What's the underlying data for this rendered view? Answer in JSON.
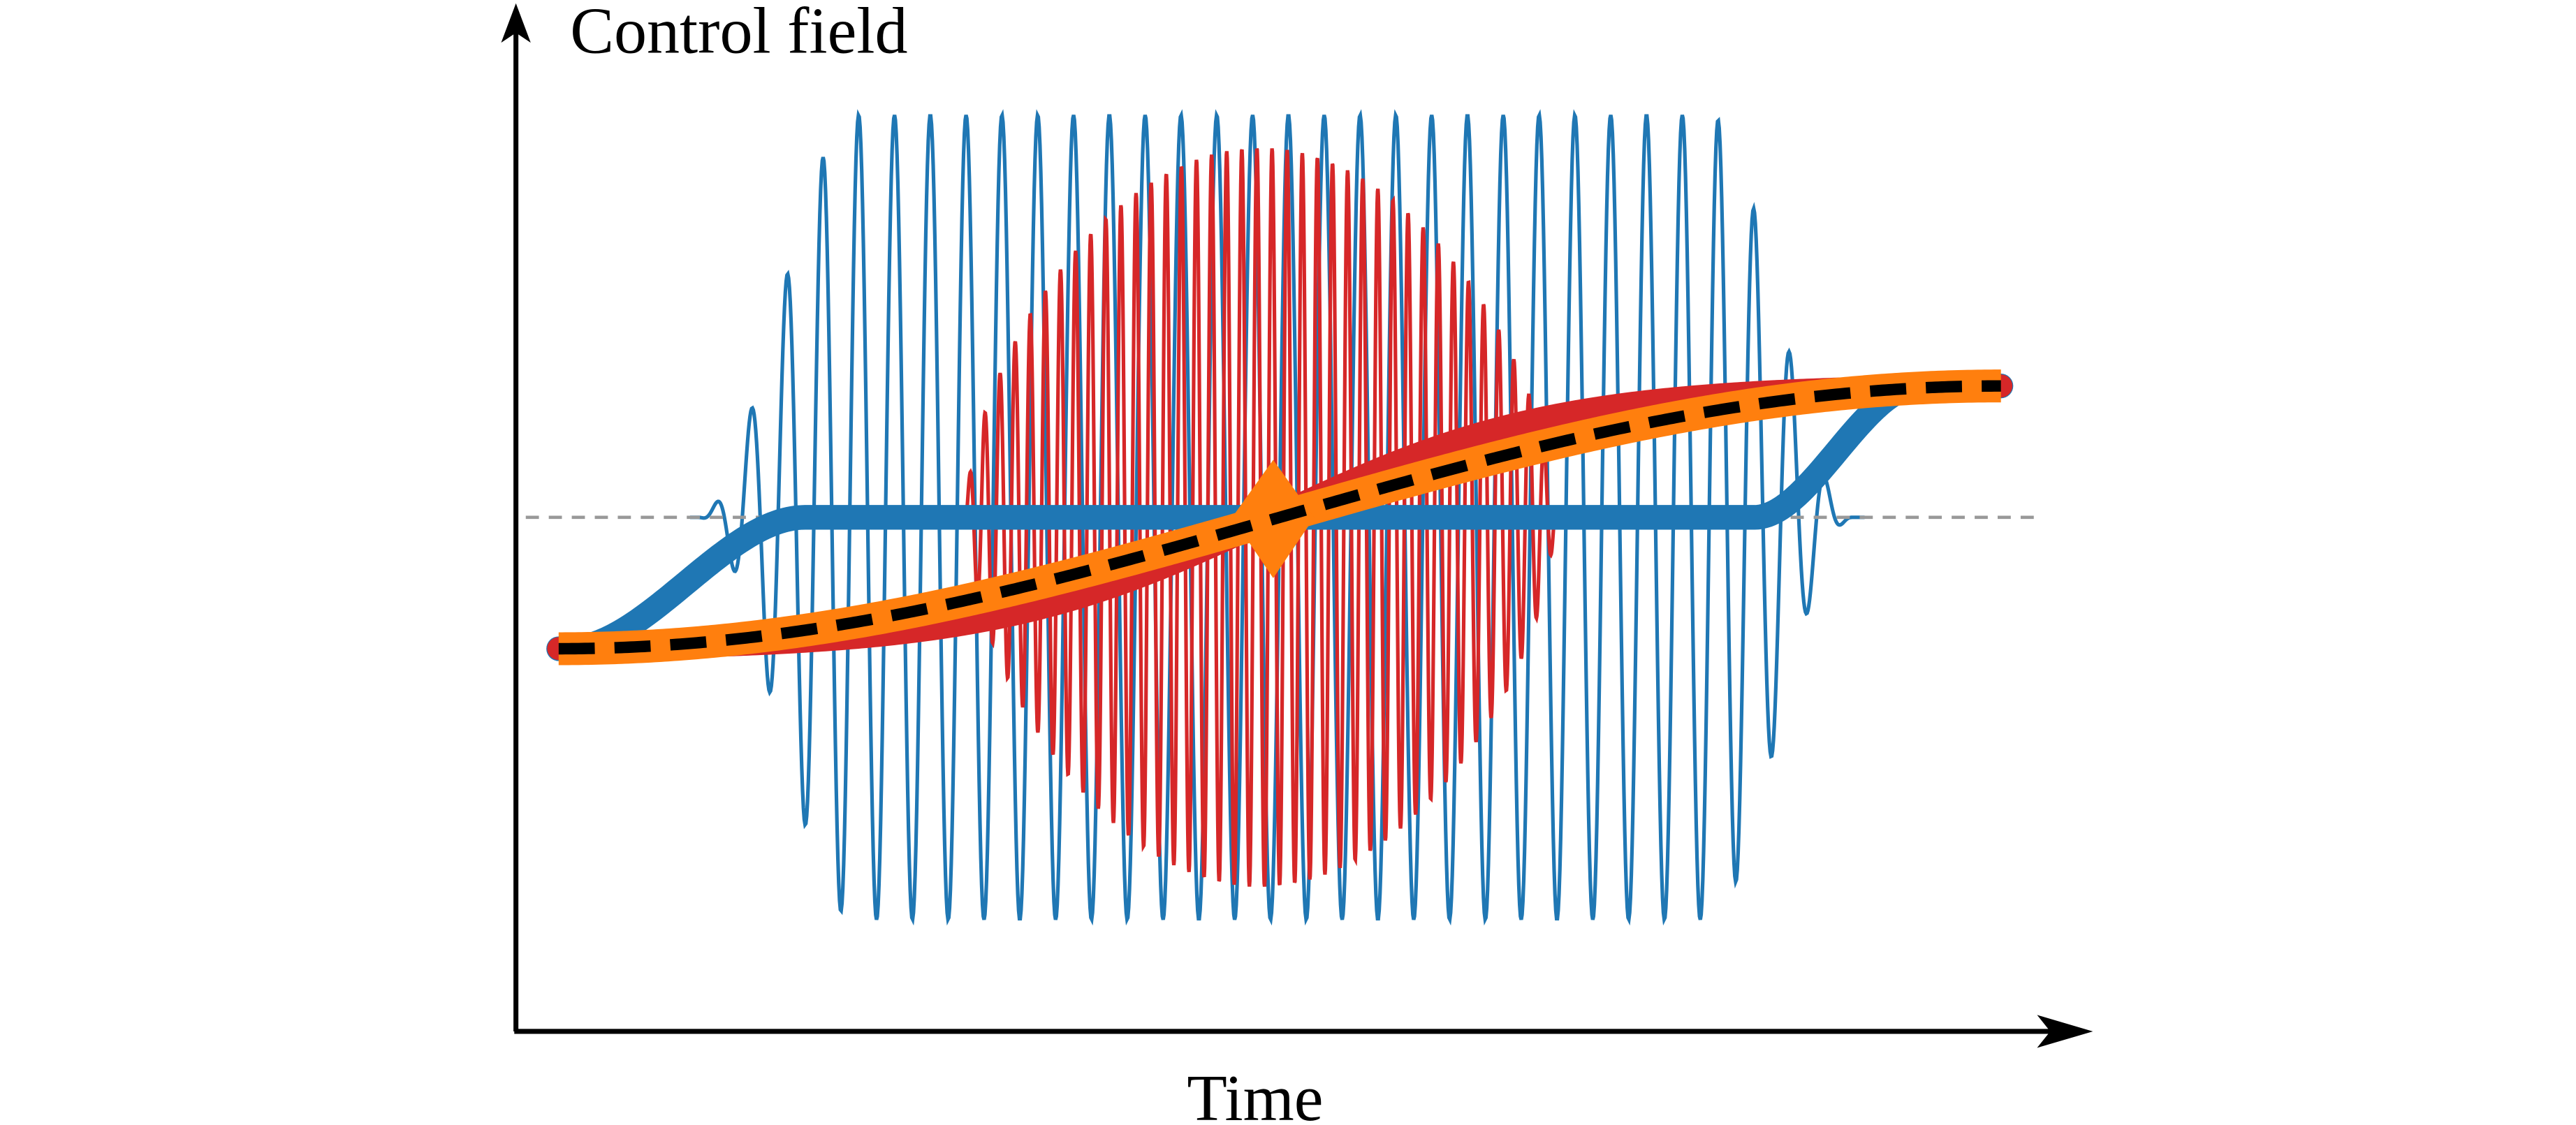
{
  "axes": {
    "y_label": "Control field",
    "x_label": "Time"
  }
}
